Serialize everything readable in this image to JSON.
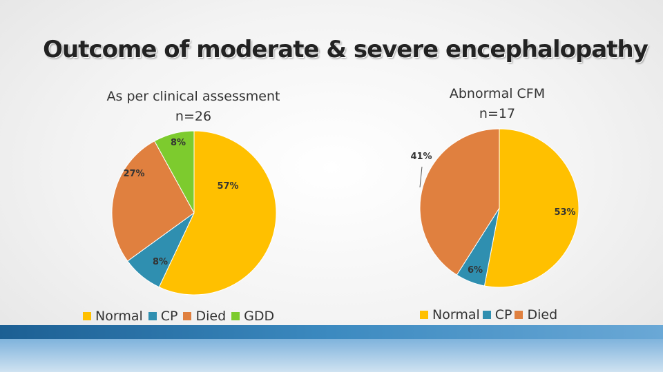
{
  "title": "Outcome of moderate & severe encephalopathy",
  "colors": {
    "Normal": "#ffc000",
    "CP": "#2f8fb0",
    "Died": "#e0803f",
    "GDD": "#7dcb2e"
  },
  "chart_data": [
    {
      "type": "pie",
      "subtitle": [
        "As per clinical assessment",
        "n=26"
      ],
      "slices": [
        {
          "name": "Normal",
          "value": 57,
          "label": "57%"
        },
        {
          "name": "CP",
          "value": 8,
          "label": "8%"
        },
        {
          "name": "Died",
          "value": 27,
          "label": "27%"
        },
        {
          "name": "GDD",
          "value": 8,
          "label": "8%"
        }
      ],
      "legend": [
        "Normal",
        "CP",
        "Died",
        "GDD"
      ],
      "legend_position": "bottom"
    },
    {
      "type": "pie",
      "subtitle": [
        "Abnormal CFM",
        "n=17"
      ],
      "slices": [
        {
          "name": "Normal",
          "value": 53,
          "label": "53%"
        },
        {
          "name": "CP",
          "value": 6,
          "label": "6%"
        },
        {
          "name": "Died",
          "value": 41,
          "label": "41%"
        }
      ],
      "legend": [
        "Normal",
        "CP",
        "Died"
      ],
      "legend_position": "bottom"
    }
  ]
}
